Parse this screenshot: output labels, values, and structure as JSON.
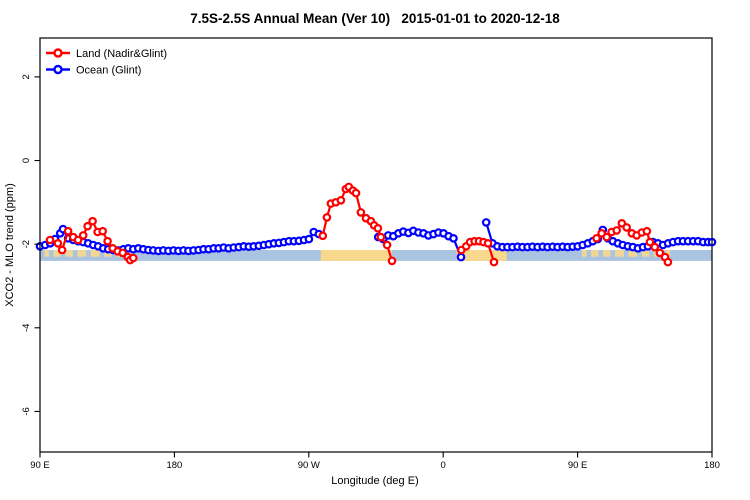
{
  "title": "7.5S-2.5S Annual Mean (Ver 10)   2015-01-01 to 2020-12-18",
  "chart_data": {
    "type": "line",
    "title": "7.5S-2.5S Annual Mean (Ver 10)   2015-01-01 to 2020-12-18",
    "xlabel": "Longitude (deg E)",
    "ylabel": "XCO2 - MLO trend (ppm)",
    "xlim": [
      90,
      540
    ],
    "ylim": [
      -6.97,
      2.93
    ],
    "grid": false,
    "legend_position": "top-left",
    "x_ticks": [
      {
        "at": 90,
        "label": "90 E"
      },
      {
        "at": 180,
        "label": "180"
      },
      {
        "at": 270,
        "label": "90 W"
      },
      {
        "at": 360,
        "label": "0"
      },
      {
        "at": 450,
        "label": "90 E"
      },
      {
        "at": 540,
        "label": "180"
      }
    ],
    "y_ticks": [
      {
        "at": 2,
        "label": "2"
      },
      {
        "at": 0,
        "label": "0"
      },
      {
        "at": -2,
        "label": "-2"
      },
      {
        "at": -4,
        "label": "-4"
      },
      {
        "at": -6,
        "label": "-6"
      }
    ],
    "series": [
      {
        "name": "Land (Nadir&Glint)",
        "color": "#ff0000",
        "segments": [
          [
            [
              96.7,
              -1.9
            ],
            [
              102,
              -1.98
            ],
            [
              104.8,
              -2.14
            ],
            [
              108.8,
              -1.69
            ],
            [
              112.2,
              -1.83
            ],
            [
              115.5,
              -1.9
            ],
            [
              118.9,
              -1.79
            ],
            [
              121.9,
              -1.57
            ],
            [
              125.2,
              -1.45
            ],
            [
              128.6,
              -1.71
            ],
            [
              132,
              -1.69
            ],
            [
              135.3,
              -1.93
            ],
            [
              138.7,
              -2.1
            ],
            [
              142,
              -2.17
            ],
            [
              145.4,
              -2.21
            ],
            [
              148.8,
              -2.31
            ],
            [
              150.4,
              -2.38
            ],
            [
              152.5,
              -2.33
            ]
          ],
          [
            [
              279.4,
              -1.8
            ],
            [
              282.1,
              -1.36
            ],
            [
              284.8,
              -1.03
            ],
            [
              288.1,
              -1.0
            ],
            [
              291.5,
              -0.95
            ],
            [
              294.8,
              -0.68
            ],
            [
              296.8,
              -0.63
            ],
            [
              299.5,
              -0.72
            ],
            [
              301.6,
              -0.78
            ],
            [
              304.9,
              -1.24
            ],
            [
              308.3,
              -1.38
            ],
            [
              311.6,
              -1.45
            ],
            [
              313.7,
              -1.55
            ],
            [
              316.3,
              -1.62
            ],
            [
              318.3,
              -1.83
            ],
            [
              322.4,
              -2.02
            ],
            [
              325.7,
              -2.4
            ]
          ],
          [
            [
              372.1,
              -2.14
            ],
            [
              375.4,
              -2.05
            ],
            [
              378,
              -1.95
            ],
            [
              381,
              -1.93
            ],
            [
              384,
              -1.93
            ],
            [
              387,
              -1.95
            ],
            [
              390,
              -1.98
            ],
            [
              394,
              -2.43
            ]
          ],
          [
            [
              462.7,
              -1.86
            ],
            [
              466.1,
              -1.74
            ],
            [
              469.5,
              -1.83
            ],
            [
              472.8,
              -1.71
            ],
            [
              476.2,
              -1.67
            ],
            [
              479.6,
              -1.5
            ],
            [
              482.9,
              -1.6
            ],
            [
              486.3,
              -1.74
            ],
            [
              489.6,
              -1.79
            ],
            [
              493,
              -1.72
            ],
            [
              496.4,
              -1.69
            ],
            [
              498.4,
              -1.95
            ],
            [
              501.7,
              -2.07
            ],
            [
              505.1,
              -2.21
            ],
            [
              508.5,
              -2.31
            ],
            [
              510.5,
              -2.43
            ]
          ]
        ]
      },
      {
        "name": "Ocean (Glint)",
        "color": "#0000ff",
        "segments": [
          [
            [
              90,
              -2.05
            ],
            [
              93.4,
              -2.02
            ],
            [
              96.8,
              -1.98
            ],
            [
              100.1,
              -1.88
            ],
            [
              103.5,
              -1.74
            ],
            [
              105.4,
              -1.64
            ],
            [
              108.8,
              -1.86
            ],
            [
              112.2,
              -1.9
            ],
            [
              115.5,
              -1.93
            ],
            [
              118.9,
              -1.95
            ],
            [
              122.2,
              -1.98
            ],
            [
              125.6,
              -2.02
            ],
            [
              128.9,
              -2.05
            ],
            [
              132.3,
              -2.1
            ],
            [
              135.7,
              -2.12
            ],
            [
              139,
              -2.14
            ],
            [
              142.4,
              -2.15
            ],
            [
              145.8,
              -2.12
            ],
            [
              149.1,
              -2.1
            ],
            [
              152.5,
              -2.12
            ],
            [
              155.8,
              -2.1
            ],
            [
              159.2,
              -2.12
            ],
            [
              162.6,
              -2.14
            ],
            [
              165.9,
              -2.15
            ],
            [
              169.3,
              -2.16
            ],
            [
              172.6,
              -2.15
            ],
            [
              176,
              -2.16
            ],
            [
              179.4,
              -2.15
            ],
            [
              182.7,
              -2.16
            ],
            [
              186.1,
              -2.15
            ],
            [
              189.4,
              -2.16
            ],
            [
              192.8,
              -2.15
            ],
            [
              196.2,
              -2.14
            ],
            [
              199.5,
              -2.12
            ],
            [
              202.9,
              -2.12
            ],
            [
              206.3,
              -2.1
            ],
            [
              209.6,
              -2.1
            ],
            [
              213,
              -2.08
            ],
            [
              216.3,
              -2.1
            ],
            [
              219.7,
              -2.08
            ],
            [
              223.1,
              -2.07
            ],
            [
              226.4,
              -2.05
            ],
            [
              229.8,
              -2.06
            ],
            [
              233.1,
              -2.05
            ],
            [
              236.5,
              -2.04
            ],
            [
              239.9,
              -2.02
            ],
            [
              243.2,
              -2.0
            ],
            [
              246.6,
              -1.98
            ],
            [
              250,
              -1.97
            ],
            [
              253.3,
              -1.95
            ],
            [
              256.7,
              -1.93
            ],
            [
              260,
              -1.93
            ],
            [
              263.4,
              -1.92
            ],
            [
              266.8,
              -1.9
            ],
            [
              270.1,
              -1.88
            ],
            [
              273.3,
              -1.71
            ],
            [
              276.7,
              -1.76
            ]
          ],
          [
            [
              316.5,
              -1.83
            ],
            [
              319.9,
              -1.88
            ],
            [
              323.2,
              -1.79
            ],
            [
              326.6,
              -1.81
            ],
            [
              330,
              -1.74
            ],
            [
              333.3,
              -1.7
            ],
            [
              336.7,
              -1.73
            ],
            [
              340,
              -1.68
            ],
            [
              343.4,
              -1.72
            ],
            [
              346.8,
              -1.74
            ],
            [
              350.1,
              -1.79
            ],
            [
              353.5,
              -1.76
            ],
            [
              356.8,
              -1.72
            ],
            [
              360.2,
              -1.74
            ],
            [
              363.6,
              -1.81
            ],
            [
              366.9,
              -1.86
            ],
            [
              371.9,
              -2.31
            ]
          ],
          [
            [
              388.8,
              -1.48
            ],
            [
              393,
              -1.98
            ],
            [
              396.3,
              -2.05
            ],
            [
              399.7,
              -2.07
            ],
            [
              403,
              -2.07
            ],
            [
              406.4,
              -2.07
            ],
            [
              409.8,
              -2.06
            ],
            [
              413.1,
              -2.07
            ],
            [
              416.5,
              -2.07
            ],
            [
              419.8,
              -2.06
            ],
            [
              423.2,
              -2.07
            ],
            [
              426.6,
              -2.06
            ],
            [
              429.9,
              -2.07
            ],
            [
              433.3,
              -2.06
            ],
            [
              436.6,
              -2.07
            ],
            [
              440,
              -2.06
            ],
            [
              443.4,
              -2.07
            ],
            [
              446.7,
              -2.06
            ],
            [
              450.1,
              -2.05
            ],
            [
              453.4,
              -2.02
            ],
            [
              456.8,
              -1.98
            ],
            [
              460.2,
              -1.93
            ],
            [
              463.5,
              -1.88
            ],
            [
              466.9,
              -1.66
            ],
            [
              470.2,
              -1.86
            ],
            [
              473.6,
              -1.93
            ],
            [
              477,
              -1.98
            ],
            [
              480.3,
              -2.02
            ],
            [
              483.7,
              -2.05
            ],
            [
              487,
              -2.07
            ],
            [
              490.4,
              -2.1
            ],
            [
              493.8,
              -2.07
            ],
            [
              497.1,
              -2.05
            ],
            [
              500.5,
              -1.95
            ],
            [
              503.8,
              -1.98
            ],
            [
              507.2,
              -2.02
            ],
            [
              510.6,
              -1.98
            ],
            [
              513.9,
              -1.95
            ],
            [
              517.3,
              -1.93
            ],
            [
              520.6,
              -1.93
            ],
            [
              524,
              -1.93
            ],
            [
              527.4,
              -1.93
            ],
            [
              530.7,
              -1.93
            ],
            [
              534.1,
              -1.95
            ],
            [
              537.4,
              -1.95
            ],
            [
              540,
              -1.95
            ]
          ]
        ]
      }
    ],
    "surface_band": {
      "value_top": -2.14,
      "value_bottom": -2.4,
      "ocean_color": "#aac3e1",
      "land_color": "#f8d88c",
      "land_segments": [
        [
          278,
          325.5
        ],
        [
          369,
          402.5
        ]
      ],
      "island_segments": [
        [
          93,
          96
        ],
        [
          99,
          104
        ],
        [
          107,
          112
        ],
        [
          115,
          121
        ],
        [
          124,
          130
        ],
        [
          133,
          138
        ],
        [
          141,
          146
        ],
        [
          149,
          152
        ],
        [
          453,
          456
        ],
        [
          459,
          464
        ],
        [
          467,
          472
        ],
        [
          475,
          481
        ],
        [
          484,
          490
        ],
        [
          493,
          498
        ],
        [
          501,
          506
        ],
        [
          509,
          512
        ]
      ]
    }
  }
}
